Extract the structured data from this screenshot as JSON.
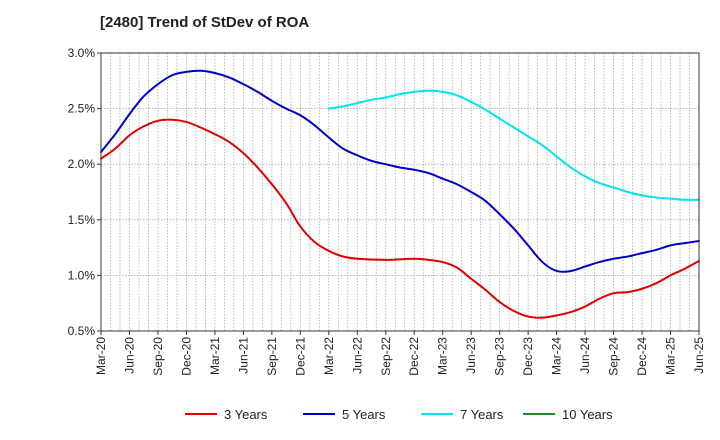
{
  "chart_data": {
    "type": "line",
    "title": "[2480]  Trend of StDev of ROA",
    "xlabel": "",
    "ylabel": "",
    "ylim": [
      0.5,
      3.0
    ],
    "y_ticks": [
      "0.5%",
      "1.0%",
      "1.5%",
      "2.0%",
      "2.5%",
      "3.0%"
    ],
    "x_ticks": [
      "Mar-20",
      "Jun-20",
      "Sep-20",
      "Dec-20",
      "Mar-21",
      "Jun-21",
      "Sep-21",
      "Dec-21",
      "Mar-22",
      "Jun-22",
      "Sep-22",
      "Dec-22",
      "Mar-23",
      "Jun-23",
      "Sep-23",
      "Dec-23",
      "Mar-24",
      "Jun-24",
      "Sep-24",
      "Dec-24",
      "Mar-25",
      "Jun-25"
    ],
    "grid": true,
    "legend_position": "bottom",
    "series": [
      {
        "name": "3 Years",
        "color": "#e00000",
        "points": [
          [
            0,
            2.05
          ],
          [
            0.5,
            2.14
          ],
          [
            1,
            2.26
          ],
          [
            1.5,
            2.34
          ],
          [
            2,
            2.39
          ],
          [
            2.5,
            2.4
          ],
          [
            3,
            2.38
          ],
          [
            3.5,
            2.33
          ],
          [
            4,
            2.27
          ],
          [
            4.5,
            2.2
          ],
          [
            5,
            2.1
          ],
          [
            5.5,
            1.97
          ],
          [
            6,
            1.82
          ],
          [
            6.5,
            1.65
          ],
          [
            7,
            1.44
          ],
          [
            7.5,
            1.3
          ],
          [
            8,
            1.22
          ],
          [
            8.5,
            1.17
          ],
          [
            9,
            1.15
          ],
          [
            10,
            1.14
          ],
          [
            11,
            1.15
          ],
          [
            11.5,
            1.14
          ],
          [
            12,
            1.12
          ],
          [
            12.5,
            1.07
          ],
          [
            13,
            0.97
          ],
          [
            13.5,
            0.87
          ],
          [
            14,
            0.76
          ],
          [
            14.5,
            0.68
          ],
          [
            15,
            0.63
          ],
          [
            15.5,
            0.62
          ],
          [
            16,
            0.64
          ],
          [
            16.5,
            0.67
          ],
          [
            17,
            0.72
          ],
          [
            17.5,
            0.79
          ],
          [
            18,
            0.84
          ],
          [
            18.5,
            0.85
          ],
          [
            19,
            0.88
          ],
          [
            19.5,
            0.93
          ],
          [
            20,
            1.0
          ],
          [
            20.5,
            1.06
          ],
          [
            21,
            1.13
          ]
        ]
      },
      {
        "name": "5 Years",
        "color": "#0000cc",
        "points": [
          [
            0,
            2.11
          ],
          [
            0.5,
            2.27
          ],
          [
            1,
            2.45
          ],
          [
            1.5,
            2.61
          ],
          [
            2,
            2.72
          ],
          [
            2.5,
            2.8
          ],
          [
            3,
            2.83
          ],
          [
            3.5,
            2.84
          ],
          [
            4,
            2.82
          ],
          [
            4.5,
            2.78
          ],
          [
            5,
            2.72
          ],
          [
            5.5,
            2.65
          ],
          [
            6,
            2.57
          ],
          [
            6.5,
            2.5
          ],
          [
            7,
            2.44
          ],
          [
            7.5,
            2.35
          ],
          [
            8,
            2.24
          ],
          [
            8.5,
            2.14
          ],
          [
            9,
            2.08
          ],
          [
            9.5,
            2.03
          ],
          [
            10,
            2.0
          ],
          [
            10.5,
            1.97
          ],
          [
            11,
            1.95
          ],
          [
            11.5,
            1.92
          ],
          [
            12,
            1.87
          ],
          [
            12.5,
            1.82
          ],
          [
            13,
            1.75
          ],
          [
            13.5,
            1.67
          ],
          [
            14,
            1.55
          ],
          [
            14.5,
            1.42
          ],
          [
            15,
            1.27
          ],
          [
            15.5,
            1.12
          ],
          [
            16,
            1.04
          ],
          [
            16.5,
            1.04
          ],
          [
            17,
            1.08
          ],
          [
            17.5,
            1.12
          ],
          [
            18,
            1.15
          ],
          [
            18.5,
            1.17
          ],
          [
            19,
            1.2
          ],
          [
            19.5,
            1.23
          ],
          [
            20,
            1.27
          ],
          [
            20.5,
            1.29
          ],
          [
            21,
            1.31
          ]
        ]
      },
      {
        "name": "7 Years",
        "color": "#00e5ee",
        "points": [
          [
            8,
            2.5
          ],
          [
            8.5,
            2.52
          ],
          [
            9,
            2.55
          ],
          [
            9.5,
            2.58
          ],
          [
            10,
            2.6
          ],
          [
            10.5,
            2.63
          ],
          [
            11,
            2.65
          ],
          [
            11.5,
            2.66
          ],
          [
            12,
            2.65
          ],
          [
            12.5,
            2.62
          ],
          [
            13,
            2.56
          ],
          [
            13.5,
            2.49
          ],
          [
            14,
            2.41
          ],
          [
            14.5,
            2.33
          ],
          [
            15,
            2.25
          ],
          [
            15.5,
            2.17
          ],
          [
            16,
            2.07
          ],
          [
            16.5,
            1.97
          ],
          [
            17,
            1.89
          ],
          [
            17.5,
            1.83
          ],
          [
            18,
            1.79
          ],
          [
            18.5,
            1.75
          ],
          [
            19,
            1.72
          ],
          [
            19.5,
            1.7
          ],
          [
            20,
            1.69
          ],
          [
            20.5,
            1.68
          ],
          [
            21,
            1.68
          ]
        ]
      },
      {
        "name": "10 Years",
        "color": "#228b22",
        "points": []
      }
    ]
  }
}
